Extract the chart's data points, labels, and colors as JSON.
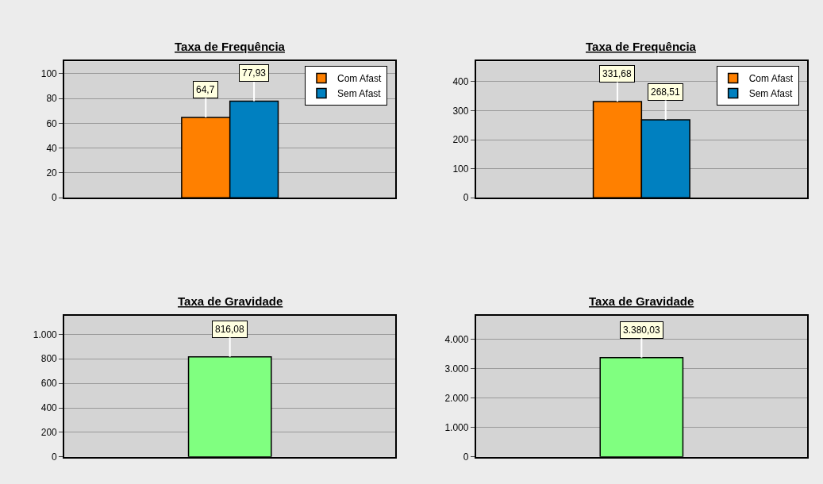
{
  "chart_data": [
    {
      "type": "bar",
      "title": "Taxa de Frequência",
      "categories": [
        null
      ],
      "ylim": [
        0,
        110
      ],
      "yticks": [
        0,
        20,
        40,
        60,
        80,
        100
      ],
      "grid": "y",
      "legend": "top right",
      "tick_labels": "y",
      "series": [
        {
          "name": "Com Afast",
          "color": "#ff8000",
          "values": [
            64.7
          ],
          "value_labels": [
            "64,7"
          ]
        },
        {
          "name": "Sem Afast",
          "color": "#0080c0",
          "values": [
            77.93
          ],
          "value_labels": [
            "77,93"
          ]
        }
      ]
    },
    {
      "type": "bar",
      "title": "Taxa de Frequência",
      "categories": [
        null
      ],
      "ylim": [
        0,
        470
      ],
      "yticks": [
        0,
        100,
        200,
        300,
        400
      ],
      "grid": "y",
      "legend": "top right",
      "tick_labels": "y",
      "series": [
        {
          "name": "Com Afast",
          "color": "#ff8000",
          "values": [
            331.68
          ],
          "value_labels": [
            "331,68"
          ]
        },
        {
          "name": "Sem Afast",
          "color": "#0080c0",
          "values": [
            268.51
          ],
          "value_labels": [
            "268,51"
          ]
        }
      ]
    },
    {
      "type": "bar",
      "title": "Taxa de Gravidade",
      "categories": [
        null
      ],
      "ylim": [
        0,
        1150
      ],
      "yticks": [
        0,
        200,
        400,
        600,
        800,
        {
          "value": 1000,
          "label": "1.000"
        }
      ],
      "grid": "y",
      "tick_labels": "y",
      "series": [
        {
          "color": "#80ff80",
          "values": [
            816.08
          ],
          "value_labels": [
            "816,08"
          ]
        }
      ]
    },
    {
      "type": "bar",
      "title": "Taxa de Gravidade",
      "categories": [
        null
      ],
      "ylim": [
        0,
        4800
      ],
      "yticks": [
        0,
        {
          "value": 1000,
          "label": "1.000"
        },
        {
          "value": 2000,
          "label": "2.000"
        },
        {
          "value": 3000,
          "label": "3.000"
        },
        {
          "value": 4000,
          "label": "4.000"
        }
      ],
      "grid": "y",
      "tick_labels": "y",
      "series": [
        {
          "color": "#80ff80",
          "values": [
            3380.03
          ],
          "value_labels": [
            "3.380,03"
          ]
        }
      ]
    }
  ]
}
